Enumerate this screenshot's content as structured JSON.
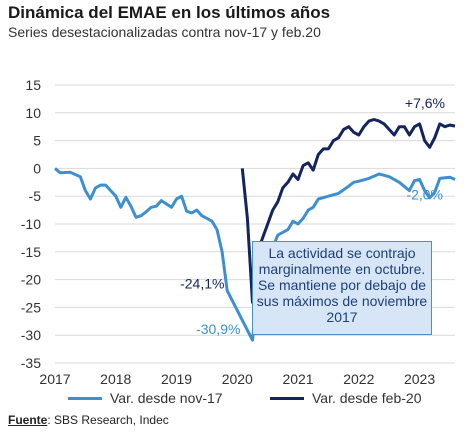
{
  "header": {
    "title": "Dinámica del EMAE en los últimos años",
    "subtitle": "Series desestacionalizadas contra nov-17 y feb.20"
  },
  "callout": {
    "text": "La actividad se contrajo marginalmente en octubre. Se mantiene por debajo de sus máximos de noviembre 2017"
  },
  "footer": {
    "source_label": "Fuente",
    "source_text": ": SBS Research, Indec"
  },
  "colors": {
    "nov17": "#3d8fd1",
    "feb20": "#14245c",
    "grid": "#d9d9d9"
  },
  "chart_data": {
    "type": "line",
    "title": "Dinámica del EMAE en los últimos años",
    "subtitle": "Series desestacionalizadas contra nov-17 y feb.20",
    "xlim": [
      "2017-01",
      "2023-08"
    ],
    "ylim": [
      -35,
      15
    ],
    "y_ticks": [
      15,
      10,
      5,
      0,
      -5,
      -10,
      -15,
      -20,
      -25,
      -30,
      -35
    ],
    "x_ticks": [
      "2017",
      "2018",
      "2019",
      "2020",
      "2021",
      "2022",
      "2023"
    ],
    "grid": "horizontal",
    "legend_position": "bottom",
    "series": [
      {
        "name": "Var. desde nov-17",
        "color": "#3d8fd1",
        "points": [
          [
            "2017-01",
            0
          ],
          [
            "2017-02",
            -0.8
          ],
          [
            "2017-04",
            -0.7
          ],
          [
            "2017-06",
            -1.5
          ],
          [
            "2017-07",
            -4
          ],
          [
            "2017-08",
            -5.5
          ],
          [
            "2017-09",
            -3.5
          ],
          [
            "2017-10",
            -3
          ],
          [
            "2017-11",
            -3
          ],
          [
            "2018-01",
            -5
          ],
          [
            "2018-02",
            -7
          ],
          [
            "2018-03",
            -5.2
          ],
          [
            "2018-04",
            -6.8
          ],
          [
            "2018-05",
            -8.8
          ],
          [
            "2018-06",
            -8.5
          ],
          [
            "2018-07",
            -7.8
          ],
          [
            "2018-08",
            -7
          ],
          [
            "2018-09",
            -6.8
          ],
          [
            "2018-10",
            -5.8
          ],
          [
            "2018-12",
            -7
          ],
          [
            "2019-01",
            -5.5
          ],
          [
            "2019-02",
            -5
          ],
          [
            "2019-03",
            -7.7
          ],
          [
            "2019-04",
            -8
          ],
          [
            "2019-05",
            -7.5
          ],
          [
            "2019-06",
            -8.5
          ],
          [
            "2019-07",
            -9
          ],
          [
            "2019-08",
            -9.5
          ],
          [
            "2019-09",
            -11
          ],
          [
            "2019-10",
            -15
          ],
          [
            "2019-11",
            -22
          ],
          [
            "2020-04",
            -30.9
          ],
          [
            "2020-05",
            -22
          ],
          [
            "2020-06",
            -19.5
          ],
          [
            "2020-07",
            -16.5
          ],
          [
            "2020-09",
            -12
          ],
          [
            "2020-11",
            -11
          ],
          [
            "2020-12",
            -9.5
          ],
          [
            "2021-01",
            -10
          ],
          [
            "2021-02",
            -9
          ],
          [
            "2021-03",
            -7.5
          ],
          [
            "2021-04",
            -7
          ],
          [
            "2021-05",
            -5.5
          ],
          [
            "2021-07",
            -5
          ],
          [
            "2021-09",
            -4.5
          ],
          [
            "2021-11",
            -3.2
          ],
          [
            "2021-12",
            -2.5
          ],
          [
            "2022-01",
            -2.3
          ],
          [
            "2022-03",
            -1.8
          ],
          [
            "2022-05",
            -1
          ],
          [
            "2022-07",
            -1.5
          ],
          [
            "2022-09",
            -2.5
          ],
          [
            "2022-11",
            -4
          ],
          [
            "2022-12",
            -2.2
          ],
          [
            "2023-01",
            -2
          ],
          [
            "2023-02",
            -4
          ],
          [
            "2023-03",
            -5.3
          ],
          [
            "2023-04",
            -4.3
          ],
          [
            "2023-05",
            -1.8
          ],
          [
            "2023-07",
            -1.6
          ],
          [
            "2023-08",
            -2.0
          ]
        ]
      },
      {
        "name": "Var. desde feb-20",
        "color": "#14245c",
        "points": [
          [
            "2020-02",
            0
          ],
          [
            "2020-03",
            -9
          ],
          [
            "2020-04",
            -24.1
          ],
          [
            "2020-05",
            -15
          ],
          [
            "2020-06",
            -12.5
          ],
          [
            "2020-07",
            -10
          ],
          [
            "2020-08",
            -7.5
          ],
          [
            "2020-09",
            -6
          ],
          [
            "2020-10",
            -3.5
          ],
          [
            "2020-11",
            -2.5
          ],
          [
            "2020-12",
            -1
          ],
          [
            "2021-01",
            -2
          ],
          [
            "2021-02",
            0.5
          ],
          [
            "2021-03",
            1
          ],
          [
            "2021-04",
            -0.3
          ],
          [
            "2021-05",
            2.5
          ],
          [
            "2021-06",
            3.5
          ],
          [
            "2021-07",
            3.5
          ],
          [
            "2021-08",
            5
          ],
          [
            "2021-09",
            5.5
          ],
          [
            "2021-10",
            7
          ],
          [
            "2021-11",
            7.5
          ],
          [
            "2021-12",
            6.5
          ],
          [
            "2022-01",
            6
          ],
          [
            "2022-02",
            7.5
          ],
          [
            "2022-03",
            8.5
          ],
          [
            "2022-04",
            8.8
          ],
          [
            "2022-05",
            8.5
          ],
          [
            "2022-06",
            8
          ],
          [
            "2022-07",
            7
          ],
          [
            "2022-08",
            6
          ],
          [
            "2022-09",
            7.5
          ],
          [
            "2022-10",
            7.5
          ],
          [
            "2022-11",
            6
          ],
          [
            "2022-12",
            7.5
          ],
          [
            "2023-01",
            8
          ],
          [
            "2023-02",
            5
          ],
          [
            "2023-03",
            3.8
          ],
          [
            "2023-04",
            5.5
          ],
          [
            "2023-05",
            8
          ],
          [
            "2023-06",
            7.5
          ],
          [
            "2023-07",
            7.8
          ],
          [
            "2023-08",
            7.6
          ]
        ]
      }
    ],
    "annotations": [
      {
        "text": "+7,6%",
        "series": "Var. desde feb-20",
        "at": "2023-08",
        "color": "#14245c"
      },
      {
        "text": "-2,0%",
        "series": "Var. desde nov-17",
        "at": "2023-08",
        "color": "#3d8fd1"
      },
      {
        "text": "-24,1%",
        "series": "Var. desde feb-20",
        "at": "2020-04",
        "color": "#14245c"
      },
      {
        "text": "-30,9%",
        "series": "Var. desde nov-17",
        "at": "2020-04",
        "color": "#3d8fd1"
      }
    ]
  }
}
